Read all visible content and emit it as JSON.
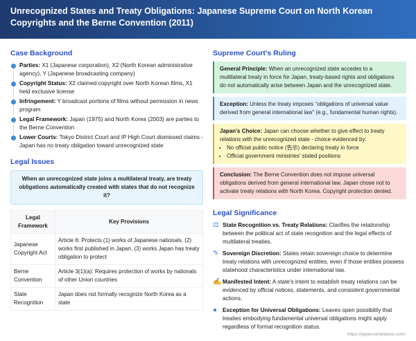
{
  "title": "Unrecognized States and Treaty Obligations: Japanese Supreme Court on North Korean Copyrights and the Berne Convention (2011)",
  "background": {
    "heading": "Case Background",
    "items": [
      {
        "label": "Parties:",
        "text": " X1 (Japanese corporation), X2 (North Korean administrative agency), Y (Japanese broadcasting company)"
      },
      {
        "label": "Copyright Status:",
        "text": " X2 claimed copyright over North Korean films, X1 held exclusive license"
      },
      {
        "label": "Infringement:",
        "text": " Y broadcast portions of films without permission in news program"
      },
      {
        "label": "Legal Framework:",
        "text": " Japan (1975) and North Korea (2003) are parties to the Berne Convention"
      },
      {
        "label": "Lower Courts:",
        "text": " Tokyo District Court and IP High Court dismissed claims - Japan has no treaty obligation toward unrecognized state"
      }
    ]
  },
  "issues": {
    "heading": "Legal Issues",
    "question": "When an unrecognized state joins a multilateral treaty, are treaty obligations automatically created with states that do not recognize it?"
  },
  "table": {
    "headers": [
      "Legal Framework",
      "Key Provisions"
    ],
    "rows": [
      [
        "Japanese Copyright Act",
        "Article 6: Protects (1) works of Japanese nationals, (2) works first published in Japan, (3) works Japan has treaty obligation to protect"
      ],
      [
        "Berne Convention",
        "Article 3(1)(a): Requires protection of works by nationals of other Union countries"
      ],
      [
        "State Recognition",
        "Japan does not formally recognize North Korea as a state"
      ]
    ]
  },
  "ruling": {
    "heading": "Supreme Court's Ruling",
    "boxes": [
      {
        "label": "General Principle:",
        "text": " When an unrecognized state accedes to a multilateral treaty in force for Japan, treaty-based rights and obligations do not automatically arise between Japan and the unrecognized state.",
        "bg": "#d5f2df",
        "border": "#3a9a5a"
      },
      {
        "label": "Exception:",
        "text": " Unless the treaty imposes \"obligations of universal value derived from general international law\" (e.g., fundamental human rights).",
        "bg": "#e3f1fc",
        "border": "#3a7fd0"
      },
      {
        "label": "Japan's Choice:",
        "text": " Japan can choose whether to give effect to treaty relations with the unrecognized state - choice evidenced by:",
        "bullets": [
          "No official public notice (告示) declaring treaty in force",
          "Official government ministries' stated positions"
        ],
        "bg": "#fdf8c6",
        "border": "#e0a820"
      },
      {
        "label": "Conclusion:",
        "text": " The Berne Convention does not impose universal obligations derived from general international law. Japan chose not to activate treaty relations with North Korea. Copyright protection denied.",
        "bg": "#fbd9d9",
        "border": "#d94848"
      }
    ]
  },
  "significance": {
    "heading": "Legal Significance",
    "items": [
      {
        "icon": "scale-icon",
        "glyph": "⚖",
        "label": "State Recognition vs. Treaty Relations:",
        "text": " Clarifies the relationship between the political act of state recognition and the legal effects of multilateral treaties."
      },
      {
        "icon": "gavel-icon",
        "glyph": "✎",
        "label": "Sovereign Discretion:",
        "text": " States retain sovereign choice to determine treaty relations with unrecognized entities, even if those entities possess statehood characteristics under international law."
      },
      {
        "icon": "document-sign-icon",
        "glyph": "✍",
        "label": "Manifested Intent:",
        "text": " A state's intent to establish treaty relations can be evidenced by official notices, statements, and consistent governmental actions."
      },
      {
        "icon": "globe-icon",
        "glyph": "●",
        "label": "Exception for Universal Obligations:",
        "text": " Leaves open possibility that treaties embodying fundamental universal obligations might apply regardless of formal recognition status."
      }
    ]
  },
  "footer": "https://japancompliance.com/"
}
